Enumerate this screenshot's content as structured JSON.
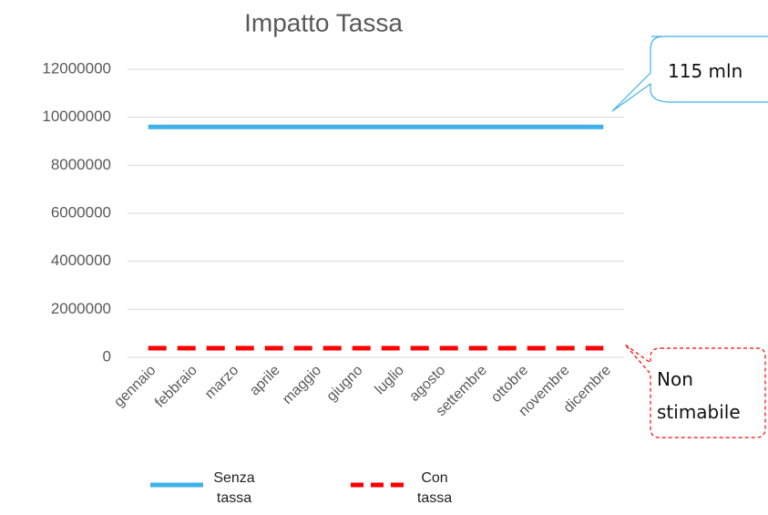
{
  "chart_data": {
    "type": "line",
    "title": "Impatto Tassa",
    "categories": [
      "gennaio",
      "febbraio",
      "marzo",
      "aprile",
      "maggio",
      "giugno",
      "luglio",
      "agosto",
      "settembre",
      "ottobre",
      "novembre",
      "dicembre"
    ],
    "series": [
      {
        "name": "Senza tassa",
        "color": "#3fb1e8",
        "dashed": false,
        "values": [
          9600000,
          9600000,
          9600000,
          9600000,
          9600000,
          9600000,
          9600000,
          9600000,
          9600000,
          9600000,
          9600000,
          9600000
        ]
      },
      {
        "name": "Con tassa",
        "color": "#ff0000",
        "dashed": true,
        "values": [
          380000,
          380000,
          380000,
          380000,
          380000,
          380000,
          380000,
          380000,
          380000,
          380000,
          380000,
          380000
        ]
      }
    ],
    "ylim": [
      0,
      12000000
    ],
    "yticks": [
      0,
      2000000,
      4000000,
      6000000,
      8000000,
      10000000,
      12000000
    ],
    "grid": true,
    "annotations": [
      "115 mln",
      "Non stimabile"
    ]
  }
}
